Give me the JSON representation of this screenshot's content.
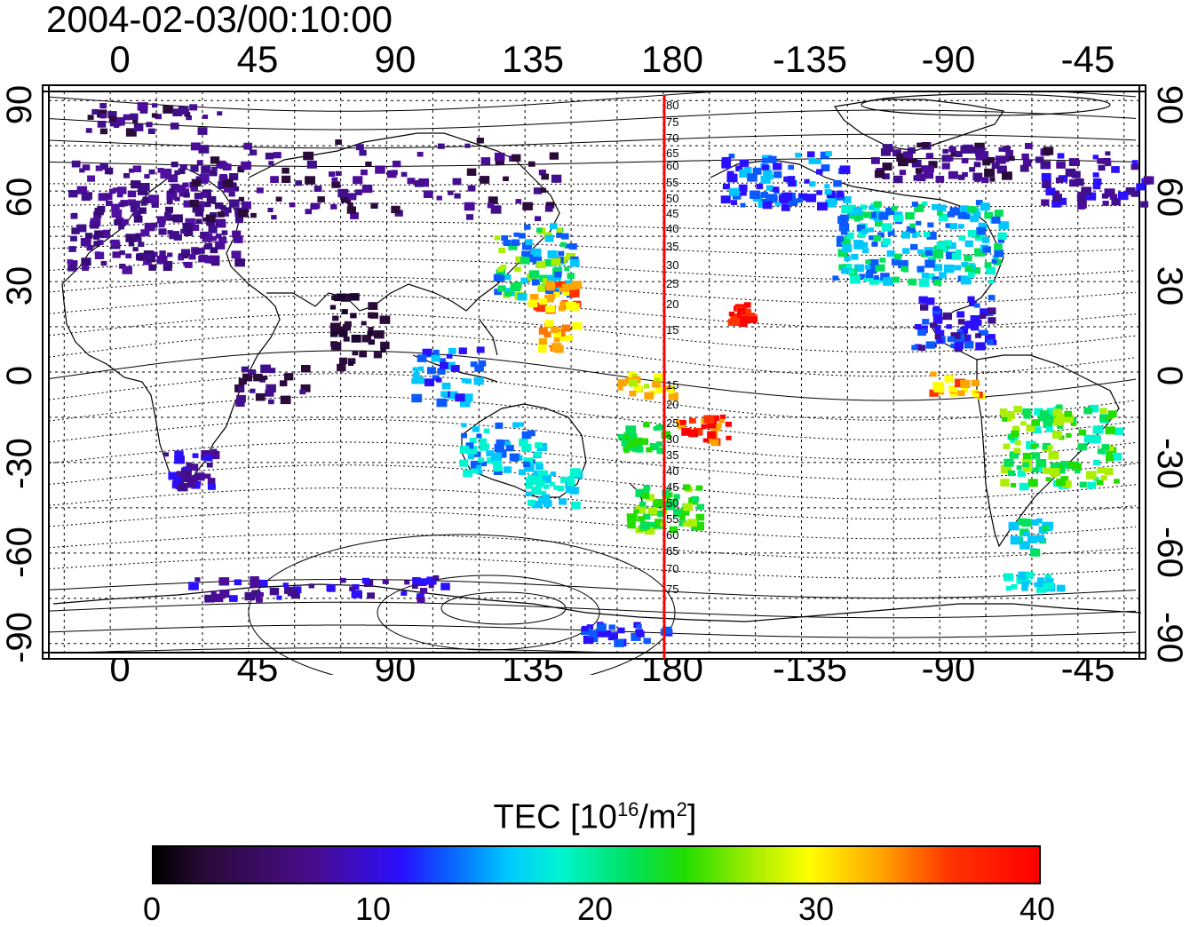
{
  "title": "2004-02-03/00:10:00",
  "axes": {
    "x_top_ticks": [
      "0",
      "45",
      "90",
      "135",
      "180",
      "-135",
      "-90",
      "-45"
    ],
    "x_bottom_ticks": [
      "0",
      "45",
      "90",
      "135",
      "180",
      "-135",
      "-90",
      "-45"
    ],
    "y_left_ticks": [
      "90",
      "60",
      "30",
      "0",
      "-30",
      "-60",
      "-90"
    ],
    "y_right_ticks": [
      "90",
      "60",
      "30",
      "0",
      "-30",
      "-60",
      "-90"
    ],
    "lon_range": [
      -20,
      335
    ],
    "lat_range": [
      -93,
      93
    ]
  },
  "meridian_line": {
    "longitude": 180,
    "color": "#ff0000",
    "latitude_labels": [
      "80",
      "75",
      "70",
      "65",
      "60",
      "55",
      "50",
      "45",
      "40",
      "35",
      "30",
      "25",
      "20",
      "15",
      "15",
      "20",
      "25",
      "30",
      "35",
      "40",
      "45",
      "50",
      "55",
      "60",
      "65",
      "70",
      "75"
    ]
  },
  "colorbar": {
    "title_prefix": "TEC  [10",
    "title_exp1": "16",
    "title_mid": "/m",
    "title_exp2": "2",
    "title_suffix": "]",
    "ticks": [
      "0",
      "10",
      "20",
      "30",
      "40"
    ],
    "range": [
      0,
      40
    ]
  }
}
